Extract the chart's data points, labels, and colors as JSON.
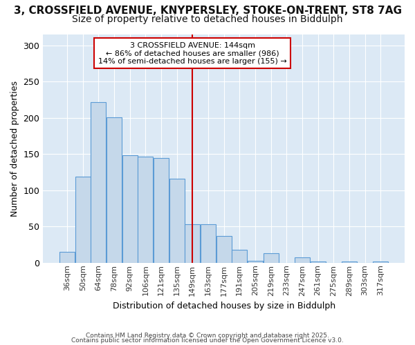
{
  "title_line1": "3, CROSSFIELD AVENUE, KNYPERSLEY, STOKE-ON-TRENT, ST8 7AG",
  "title_line2": "Size of property relative to detached houses in Biddulph",
  "xlabel": "Distribution of detached houses by size in Biddulph",
  "ylabel": "Number of detached properties",
  "footer_line1": "Contains HM Land Registry data © Crown copyright and database right 2025.",
  "footer_line2": "Contains public sector information licensed under the Open Government Licence v3.0.",
  "categories": [
    "36sqm",
    "50sqm",
    "64sqm",
    "78sqm",
    "92sqm",
    "106sqm",
    "121sqm",
    "135sqm",
    "149sqm",
    "163sqm",
    "177sqm",
    "191sqm",
    "205sqm",
    "219sqm",
    "233sqm",
    "247sqm",
    "261sqm",
    "275sqm",
    "289sqm",
    "303sqm",
    "317sqm"
  ],
  "values": [
    15,
    119,
    222,
    201,
    148,
    146,
    145,
    116,
    53,
    53,
    37,
    18,
    3,
    13,
    0,
    7,
    2,
    0,
    2,
    0,
    2
  ],
  "bar_color": "#c5d8ea",
  "bar_edge_color": "#5b9bd5",
  "reference_line_x": 8.0,
  "reference_line_label": "3 CROSSFIELD AVENUE: 144sqm",
  "annotation_line1": "← 86% of detached houses are smaller (986)",
  "annotation_line2": "14% of semi-detached houses are larger (155) →",
  "annotation_box_color": "#ffffff",
  "annotation_box_edge_color": "#cc0000",
  "ref_line_color": "#cc0000",
  "ylim": [
    0,
    315
  ],
  "plot_bg_color": "#dce9f5",
  "fig_bg_color": "#ffffff",
  "grid_color": "#ffffff",
  "title_fontsize": 11,
  "subtitle_fontsize": 10,
  "axis_label_fontsize": 9,
  "tick_fontsize": 8
}
